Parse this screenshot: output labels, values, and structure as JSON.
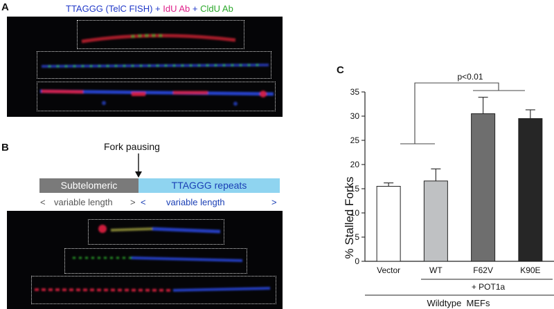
{
  "panelA": {
    "letter": "A",
    "legend": {
      "probe1": "TTAGGG (TelC FISH)",
      "plus1": " + ",
      "probe2": "IdU Ab",
      "plus2": " + ",
      "probe3": "CldU Ab"
    },
    "colors": {
      "probe1": "#2038c8",
      "probe2": "#e0208a",
      "probe3": "#2aa82a"
    }
  },
  "panelB": {
    "letter": "B",
    "annotation": "Fork pausing",
    "segment_left": "Subtelomeric",
    "segment_right": "TTAGGG repeats",
    "left_length": {
      "open": "<",
      "text": "variable length",
      "close": ">"
    },
    "right_length": {
      "open": "<",
      "text": "variable length",
      "close": ">"
    }
  },
  "panelC": {
    "letter": "C",
    "significance": "p<0.01",
    "group_label": "+ POT1a",
    "cell_label": "Wildtype  MEFs"
  },
  "chart_data": {
    "type": "bar",
    "title": "",
    "xlabel": "",
    "ylabel": "% Stalled Forks",
    "categories": [
      "Vector",
      "WT",
      "F62V",
      "K90E"
    ],
    "values": [
      15.5,
      16.6,
      30.5,
      29.5
    ],
    "errors": [
      0.7,
      2.5,
      3.4,
      1.8
    ],
    "colors": [
      "#ffffff",
      "#bfc1c3",
      "#6e6e6e",
      "#262626"
    ],
    "ylim": [
      0,
      35
    ],
    "yticks": [
      0,
      5,
      10,
      15,
      20,
      25,
      30,
      35
    ],
    "grid": false
  }
}
